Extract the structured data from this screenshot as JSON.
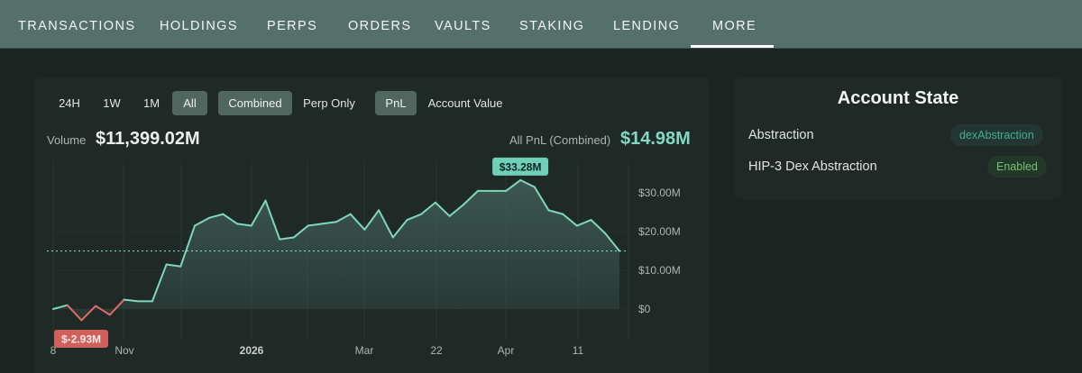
{
  "nav": {
    "tabs": [
      "TRANSACTIONS",
      "HOLDINGS",
      "PERPS",
      "ORDERS",
      "VAULTS",
      "STAKING",
      "LENDING",
      "MORE"
    ],
    "active": "MORE"
  },
  "chart_panel": {
    "range_buttons": [
      "24H",
      "1W",
      "1M",
      "All"
    ],
    "range_active": "All",
    "mode_buttons": [
      "Combined",
      "Perp Only"
    ],
    "mode_active": "Combined",
    "metric_buttons": [
      "PnL",
      "Account Value"
    ],
    "metric_active": "PnL",
    "volume_label": "Volume",
    "volume_value": "$11,399.02M",
    "pnl_label": "All PnL (Combined)",
    "pnl_value": "$14.98M"
  },
  "chart_data": {
    "type": "area",
    "title": "",
    "x_tick_labels": [
      "8",
      "Nov",
      "2026",
      "Mar",
      "22",
      "Apr",
      "11"
    ],
    "y_tick_labels": [
      "$30.00M",
      "$20.00M",
      "$10.00M",
      "$0"
    ],
    "ylim": [
      -5,
      37
    ],
    "current_value": 14.98,
    "min_label": "$-2.93M",
    "max_label": "$33.28M",
    "series": [
      {
        "values": [
          0.0,
          1.0,
          -2.9,
          0.8,
          -1.5,
          2.4,
          2.0,
          2.0,
          11.5,
          11.0,
          21.5,
          23.5,
          24.5,
          22.0,
          21.5,
          28.0,
          18.0,
          18.5,
          21.5,
          22.0,
          22.5,
          24.5,
          20.5,
          25.5,
          18.5,
          23.0,
          24.5,
          27.5,
          24.0,
          27.0,
          30.5,
          30.5,
          30.5,
          33.28,
          31.5,
          25.5,
          24.5,
          21.5,
          23.0,
          19.5,
          14.98
        ],
        "colors": {
          "positive": "#7fd6bd",
          "negative": "#e36b6b",
          "fill": "#3f5d55"
        }
      }
    ],
    "grid": true
  },
  "account_state": {
    "title": "Account State",
    "rows": [
      {
        "label": "Abstraction",
        "value": "dexAbstraction"
      },
      {
        "label": "HIP-3 Dex Abstraction",
        "value": "Enabled"
      }
    ]
  }
}
